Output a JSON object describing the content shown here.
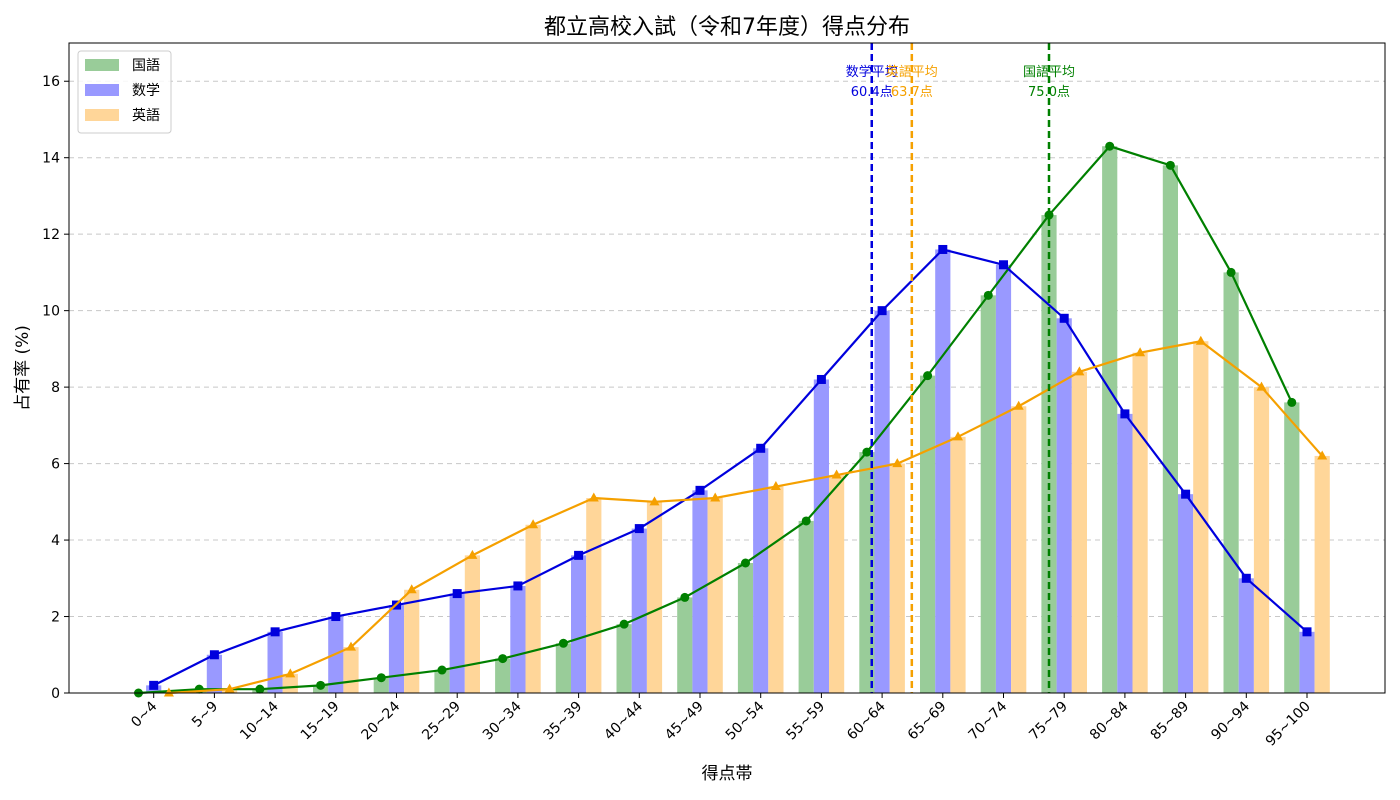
{
  "chart_data": {
    "type": "bar",
    "title": "都立高校入試（令和7年度）得点分布",
    "xlabel": "得点帯",
    "ylabel": "占有率 (%)",
    "ylim": [
      0,
      17
    ],
    "yticks": [
      0,
      2,
      4,
      6,
      8,
      10,
      12,
      14,
      16
    ],
    "grid": "horizontal-dashed",
    "legend_position": "top-left",
    "categories": [
      "0~4",
      "5~9",
      "10~14",
      "15~19",
      "20~24",
      "25~29",
      "30~34",
      "35~39",
      "40~44",
      "45~49",
      "50~54",
      "55~59",
      "60~64",
      "65~69",
      "70~74",
      "75~79",
      "80~84",
      "85~89",
      "90~94",
      "95~100"
    ],
    "series": [
      {
        "name": "国語",
        "bar_color": "#99cc99",
        "line_color": "#008000",
        "marker": "circle",
        "values": [
          0.0,
          0.1,
          0.1,
          0.2,
          0.4,
          0.6,
          0.9,
          1.3,
          1.8,
          2.5,
          3.4,
          4.5,
          6.3,
          8.3,
          10.4,
          12.5,
          14.3,
          13.8,
          11.0,
          7.6
        ]
      },
      {
        "name": "数学",
        "bar_color": "#9999ff",
        "line_color": "#0000dd",
        "marker": "square",
        "values": [
          0.2,
          1.0,
          1.6,
          2.0,
          2.3,
          2.6,
          2.8,
          3.6,
          4.3,
          5.3,
          6.4,
          8.2,
          10.0,
          11.6,
          11.2,
          9.8,
          7.3,
          5.2,
          3.0,
          1.6
        ]
      },
      {
        "name": "英語",
        "bar_color": "#ffd699",
        "line_color": "#f5a000",
        "marker": "triangle",
        "values": [
          0.0,
          0.1,
          0.5,
          1.2,
          2.7,
          3.6,
          4.4,
          5.1,
          5.0,
          5.1,
          5.4,
          5.7,
          6.0,
          6.7,
          7.5,
          8.4,
          8.9,
          9.2,
          8.0,
          6.2
        ]
      }
    ],
    "averages": [
      {
        "subject": "数学",
        "label": "数学平均",
        "value_text": "60.4点",
        "value": 60.4,
        "color": "#0000dd"
      },
      {
        "subject": "英語",
        "label": "英語平均",
        "value_text": "63.7点",
        "value": 63.7,
        "color": "#f5a000"
      },
      {
        "subject": "国語",
        "label": "国語平均",
        "value_text": "75.0点",
        "value": 75.0,
        "color": "#008000"
      }
    ]
  }
}
